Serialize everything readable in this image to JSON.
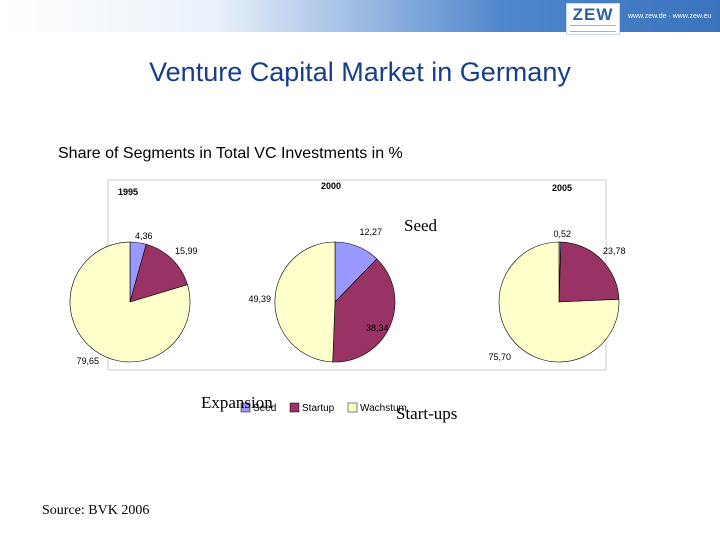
{
  "header": {
    "logo_text": "ZEW",
    "url_text": "www.zew.de · www.zew.eu"
  },
  "slide": {
    "title": "Venture Capital Market in Germany",
    "subtitle": "Share of Segments in Total VC Investments in %",
    "source": "Source: BVK 2006"
  },
  "overlay_labels": {
    "seed": "Seed",
    "expansion": "Expansion",
    "startups": "Start-ups"
  },
  "chart_data": [
    {
      "type": "pie",
      "title": "1995",
      "slices": [
        {
          "label": "Seed",
          "value": 4.36,
          "text": "4,36"
        },
        {
          "label": "Startup",
          "value": 15.99,
          "text": "15,99"
        },
        {
          "label": "Wachstum",
          "value": 79.65,
          "text": "79,65"
        }
      ]
    },
    {
      "type": "pie",
      "title": "2000",
      "slices": [
        {
          "label": "Seed",
          "value": 12.27,
          "text": "12,27"
        },
        {
          "label": "Startup",
          "value": 38.34,
          "text": "38,34"
        },
        {
          "label": "Wachstum",
          "value": 49.39,
          "text": "49,39"
        }
      ]
    },
    {
      "type": "pie",
      "title": "2005",
      "slices": [
        {
          "label": "Seed",
          "value": 0.52,
          "text": "0,52"
        },
        {
          "label": "Startup",
          "value": 23.78,
          "text": "23,78"
        },
        {
          "label": "Wachstum",
          "value": 75.7,
          "text": "75,70"
        }
      ]
    }
  ],
  "legend": {
    "placement": "bottom",
    "entries": [
      {
        "label": "Seed",
        "color": "#9999ff"
      },
      {
        "label": "Startup",
        "color": "#993366"
      },
      {
        "label": "Wachstum",
        "color": "#ffffcc"
      }
    ]
  },
  "colors": {
    "title": "#173d8d",
    "seed": "#9999ff",
    "startup": "#993366",
    "wachstum": "#ffffcc"
  }
}
